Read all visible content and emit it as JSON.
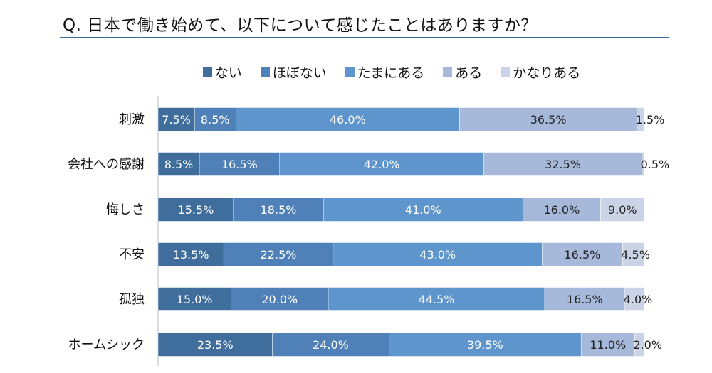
{
  "chart_data": {
    "type": "bar",
    "orientation": "horizontal",
    "stacked": true,
    "title": "Q. 日本で働き始めて、以下について感じたことはありますか？",
    "legend_position": "top",
    "xlim": [
      0,
      100
    ],
    "grid": false,
    "categories": [
      "刺激",
      "会社への感謝",
      "悔しさ",
      "不安",
      "孤独",
      "ホームシック"
    ],
    "series": [
      {
        "name": "ない",
        "color": "#3f6e9c",
        "values": [
          7.5,
          8.5,
          15.5,
          13.5,
          15.0,
          23.5
        ]
      },
      {
        "name": "ほぼない",
        "color": "#4f81b8",
        "values": [
          8.5,
          16.5,
          18.5,
          22.5,
          20.0,
          24.0
        ]
      },
      {
        "name": "たまにある",
        "color": "#5d95cc",
        "values": [
          46.0,
          42.0,
          41.0,
          43.0,
          44.5,
          39.5
        ]
      },
      {
        "name": "ある",
        "color": "#a7b9da",
        "values": [
          36.5,
          32.5,
          16.0,
          16.5,
          16.5,
          11.0
        ]
      },
      {
        "name": "かなりある",
        "color": "#cbd3e6",
        "values": [
          1.5,
          0.5,
          9.0,
          4.5,
          4.0,
          2.0
        ]
      }
    ]
  }
}
